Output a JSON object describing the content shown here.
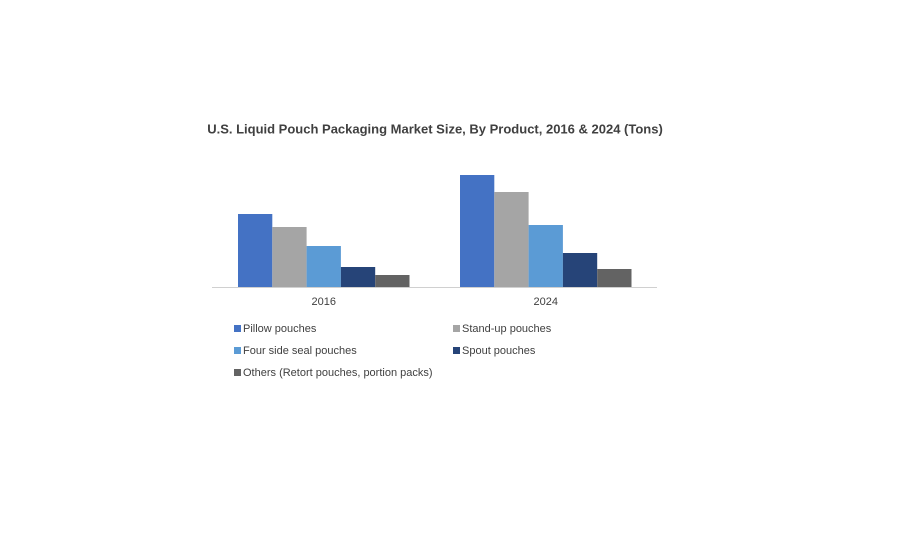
{
  "chart_data": {
    "type": "bar",
    "title": "U.S. Liquid Pouch Packaging Market Size, By Product, 2016 & 2024 (Tons)",
    "categories": [
      "2016",
      "2024"
    ],
    "series": [
      {
        "name": "Pillow pouches",
        "color": "#4472c4",
        "values": [
          73,
          112
        ]
      },
      {
        "name": "Stand-up pouches",
        "color": "#a5a5a5",
        "values": [
          60,
          95
        ]
      },
      {
        "name": "Four side seal pouches",
        "color": "#5b9bd5",
        "values": [
          41,
          62
        ]
      },
      {
        "name": "Spout pouches",
        "color": "#264478",
        "values": [
          20,
          34
        ]
      },
      {
        "name": "Others (Retort pouches, portion packs)",
        "color": "#636363",
        "values": [
          12,
          18
        ]
      }
    ]
  }
}
